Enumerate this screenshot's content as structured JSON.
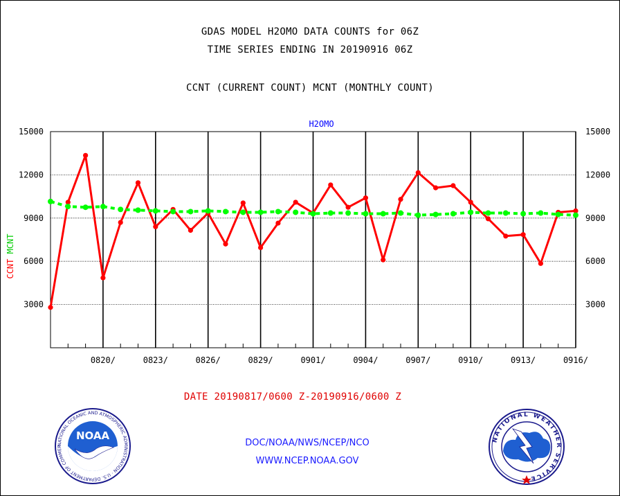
{
  "titles": {
    "line1": "GDAS MODEL H2OMO DATA COUNTS for 06Z",
    "line2": "TIME SERIES ENDING IN 20190916 06Z",
    "line3": "CCNT (CURRENT COUNT) MCNT (MONTHLY COUNT)"
  },
  "date_range": "DATE 20190817/0600 Z-20190916/0600 Z",
  "footer": {
    "org": "DOC/NOAA/NWS/NCEP/NCO",
    "url": "WWW.NCEP.NOAA.GOV"
  },
  "logos": {
    "noaa": {
      "text": "NOAA",
      "ring": "NATIONAL OCEANIC AND ATMOSPHERIC ADMINISTRATION · U.S. DEPARTMENT OF COMMERCE ·"
    },
    "nws": {
      "ring": "NATIONAL WEATHER SERVICE"
    }
  },
  "chart_data": {
    "type": "line",
    "title": "H2OMO",
    "ylabel_left": "CCNT",
    "ylabel_right": "MCNT",
    "ylim": [
      0,
      15000
    ],
    "yticks": [
      3000,
      6000,
      9000,
      12000,
      15000
    ],
    "xticks": [
      "0820/",
      "0823/",
      "0826/",
      "0829/",
      "0901/",
      "0904/",
      "0907/",
      "0910/",
      "0913/",
      "0916/"
    ],
    "x": [
      "0817",
      "0818",
      "0819",
      "0820",
      "0821",
      "0822",
      "0823",
      "0824",
      "0825",
      "0826",
      "0827",
      "0828",
      "0829",
      "0830",
      "0831",
      "0901",
      "0902",
      "0903",
      "0904",
      "0905",
      "0906",
      "0907",
      "0908",
      "0909",
      "0910",
      "0911",
      "0912",
      "0913",
      "0914",
      "0915",
      "0916"
    ],
    "grid": true,
    "series": [
      {
        "name": "CCNT",
        "color": "#ff0000",
        "style": "solid",
        "values": [
          2800,
          10100,
          13350,
          4850,
          8700,
          11450,
          8400,
          9600,
          8150,
          9350,
          7200,
          10050,
          6950,
          8650,
          10100,
          9350,
          11300,
          9750,
          10400,
          6100,
          10300,
          12150,
          11100,
          11250,
          10100,
          8950,
          7750,
          7850,
          5850,
          9400,
          9500
        ]
      },
      {
        "name": "MCNT",
        "color": "#00ff00",
        "style": "dashed",
        "values": [
          10150,
          9800,
          9750,
          9800,
          9600,
          9550,
          9500,
          9450,
          9450,
          9500,
          9450,
          9400,
          9400,
          9450,
          9400,
          9300,
          9350,
          9350,
          9300,
          9300,
          9350,
          9200,
          9250,
          9300,
          9400,
          9350,
          9350,
          9300,
          9350,
          9250,
          9200
        ]
      }
    ]
  }
}
